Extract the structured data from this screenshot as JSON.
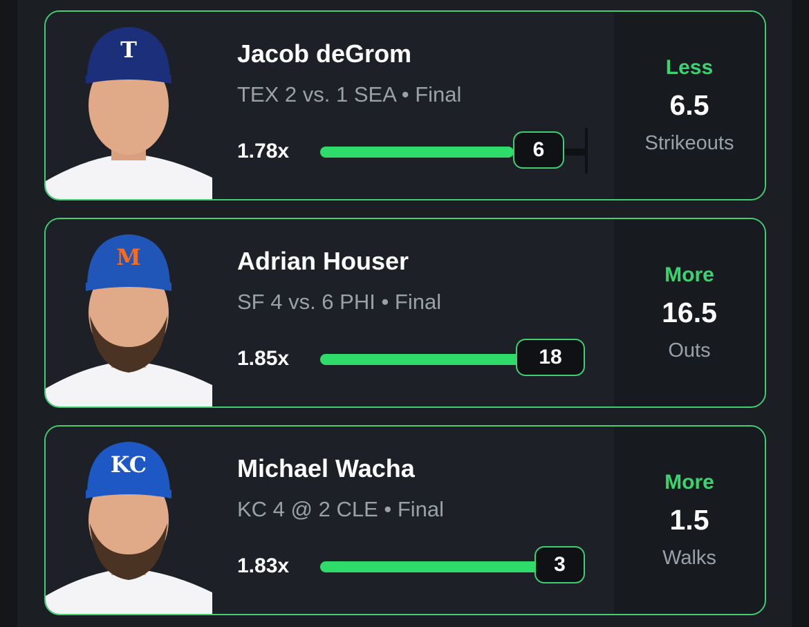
{
  "cards": [
    {
      "player": "Jacob deGrom",
      "game": "TEX 2 vs. 1 SEA • Final",
      "multiplier": "1.78x",
      "result": 6,
      "pick": "Less",
      "line": 6.5,
      "stat": "Strikeouts",
      "cap_letter": "T"
    },
    {
      "player": "Adrian Houser",
      "game": "SF 4 vs. 6 PHI • Final",
      "multiplier": "1.85x",
      "result": 18,
      "pick": "More",
      "line": 16.5,
      "stat": "Outs",
      "cap_letter": "M"
    },
    {
      "player": "Michael Wacha",
      "game": "KC 4 @ 2 CLE • Final",
      "multiplier": "1.83x",
      "result": 3,
      "pick": "More",
      "line": 1.5,
      "stat": "Walks",
      "cap_letter": "KC"
    }
  ]
}
